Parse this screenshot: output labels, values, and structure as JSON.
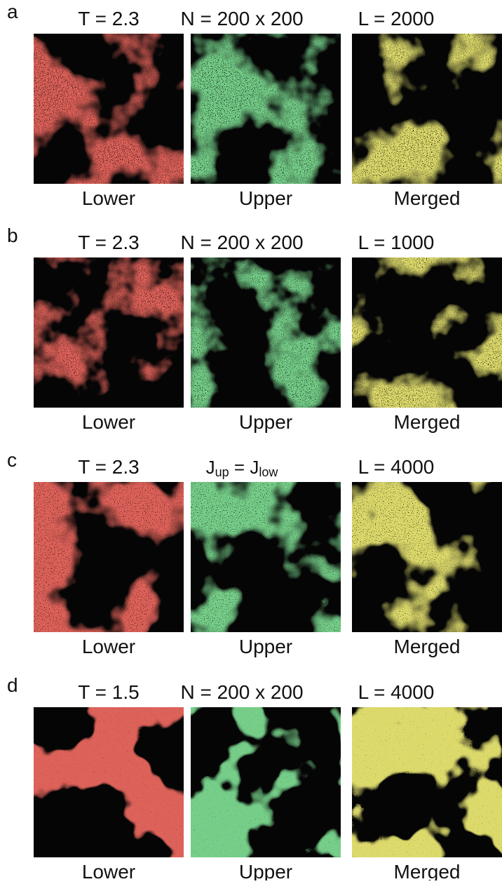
{
  "panels": [
    {
      "label": "a",
      "header": [
        "T = 2.3",
        "N = 200 x 200",
        "L = 2000"
      ],
      "captions": [
        "Lower",
        "Upper",
        "Merged"
      ]
    },
    {
      "label": "b",
      "header": [
        "T = 2.3",
        "N = 200 x 200",
        "L = 1000"
      ],
      "captions": [
        "Lower",
        "Upper",
        "Merged"
      ]
    },
    {
      "label": "c",
      "header": [
        "T = 2.3",
        [
          "J",
          "up",
          " = J",
          "low"
        ],
        "L = 4000"
      ],
      "captions": [
        "Lower",
        "Upper",
        "Merged"
      ]
    },
    {
      "label": "d",
      "header": [
        "T = 1.5",
        "N = 200 x 200",
        "L = 4000"
      ],
      "captions": [
        "Lower",
        "Upper",
        "Merged"
      ]
    }
  ]
}
